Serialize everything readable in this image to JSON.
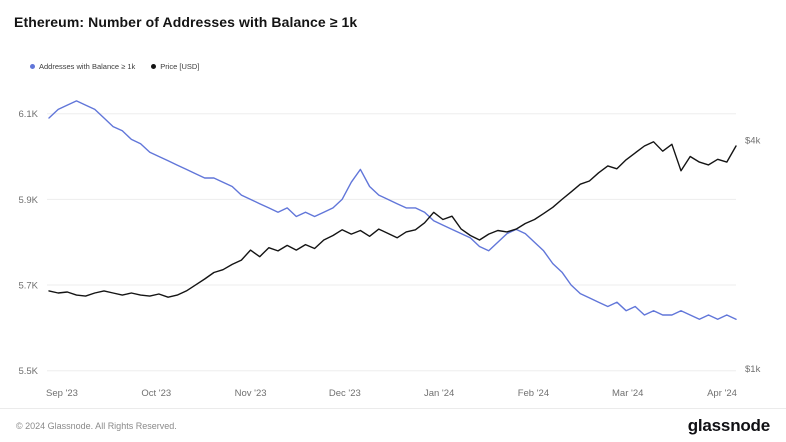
{
  "title": "Ethereum: Number of Addresses with Balance ≥ 1k",
  "legend": [
    {
      "label": "Addresses with Balance ≥ 1k",
      "color": "#6176d9"
    },
    {
      "label": "Price [USD]",
      "color": "#141414"
    }
  ],
  "footer": {
    "copyright": "© 2024 Glassnode. All Rights Reserved.",
    "logo_text": "glassnode"
  },
  "chart_data": {
    "type": "line",
    "title": "Ethereum: Number of Addresses with Balance ≥ 1k",
    "grid": "horizontal",
    "legend_position": "top-left",
    "x_tick_labels": [
      "Sep '23",
      "Oct '23",
      "Nov '23",
      "Dec '23",
      "Jan '24",
      "Feb '24",
      "Mar '24",
      "Apr '24"
    ],
    "axes": {
      "left": {
        "scale": "linear",
        "range": [
          5.49,
          6.16
        ],
        "unit": "K addresses",
        "ticks": [
          {
            "label": "6.1K",
            "value": 6.1
          },
          {
            "label": "5.9K",
            "value": 5.9
          },
          {
            "label": "5.7K",
            "value": 5.7
          },
          {
            "label": "5.5K",
            "value": 5.5
          }
        ]
      },
      "right": {
        "scale": "log",
        "range": [
          0.96,
          5.49
        ],
        "unit": "$k",
        "ticks": [
          {
            "label": "$4k",
            "value": 4
          },
          {
            "label": "$1k",
            "value": 1
          }
        ]
      }
    },
    "series": [
      {
        "name": "Addresses with Balance ≥ 1k",
        "axis": "left",
        "color": "#6176d9",
        "unit": "K",
        "values": [
          6.09,
          6.11,
          6.12,
          6.13,
          6.12,
          6.11,
          6.09,
          6.07,
          6.06,
          6.04,
          6.03,
          6.01,
          6.0,
          5.99,
          5.98,
          5.97,
          5.96,
          5.95,
          5.95,
          5.94,
          5.93,
          5.91,
          5.9,
          5.89,
          5.88,
          5.87,
          5.88,
          5.86,
          5.87,
          5.86,
          5.87,
          5.88,
          5.9,
          5.94,
          5.97,
          5.93,
          5.91,
          5.9,
          5.89,
          5.88,
          5.88,
          5.87,
          5.85,
          5.84,
          5.83,
          5.82,
          5.81,
          5.79,
          5.78,
          5.8,
          5.82,
          5.83,
          5.82,
          5.8,
          5.78,
          5.75,
          5.73,
          5.7,
          5.68,
          5.67,
          5.66,
          5.65,
          5.66,
          5.64,
          5.65,
          5.63,
          5.64,
          5.63,
          5.63,
          5.64,
          5.63,
          5.62,
          5.63,
          5.62,
          5.63,
          5.62
        ]
      },
      {
        "name": "Price [USD]",
        "axis": "right",
        "color": "#141414",
        "unit": "$k",
        "values": [
          1.6,
          1.58,
          1.59,
          1.56,
          1.55,
          1.58,
          1.6,
          1.58,
          1.56,
          1.58,
          1.56,
          1.55,
          1.57,
          1.54,
          1.56,
          1.6,
          1.66,
          1.72,
          1.79,
          1.82,
          1.88,
          1.93,
          2.05,
          1.97,
          2.08,
          2.04,
          2.11,
          2.05,
          2.12,
          2.07,
          2.18,
          2.24,
          2.32,
          2.26,
          2.31,
          2.23,
          2.33,
          2.27,
          2.21,
          2.29,
          2.32,
          2.42,
          2.58,
          2.47,
          2.52,
          2.33,
          2.24,
          2.18,
          2.26,
          2.31,
          2.29,
          2.33,
          2.41,
          2.47,
          2.56,
          2.66,
          2.79,
          2.92,
          3.06,
          3.12,
          3.28,
          3.42,
          3.36,
          3.55,
          3.7,
          3.86,
          3.96,
          3.74,
          3.9,
          3.32,
          3.62,
          3.5,
          3.44,
          3.56,
          3.5,
          3.86
        ]
      }
    ]
  }
}
